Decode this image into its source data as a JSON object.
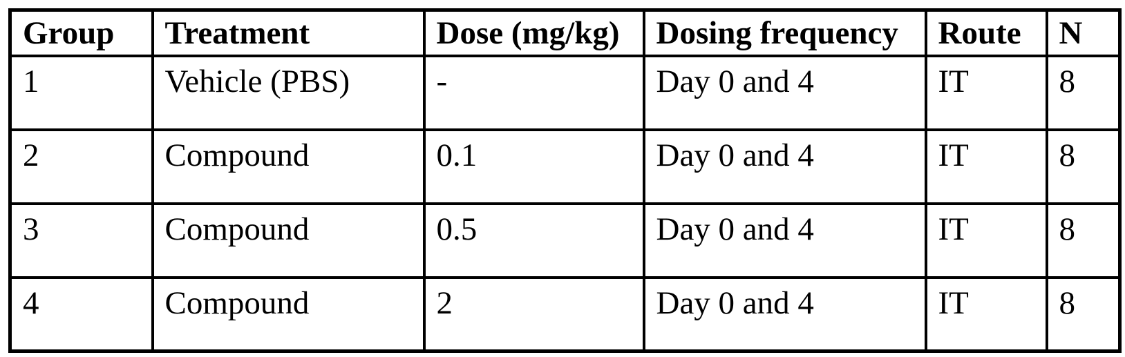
{
  "table": {
    "headers": [
      "Group",
      "Treatment",
      "Dose (mg/kg)",
      "Dosing frequency",
      "Route",
      "N"
    ],
    "rows": [
      [
        "1",
        "Vehicle (PBS)",
        "-",
        "Day 0 and 4",
        "IT",
        "8"
      ],
      [
        "2",
        "Compound",
        "0.1",
        "Day 0 and 4",
        "IT",
        "8"
      ],
      [
        "3",
        "Compound",
        "0.5",
        "Day 0 and 4",
        "IT",
        "8"
      ],
      [
        "4",
        "Compound",
        "2",
        "Day 0 and 4",
        "IT",
        "8"
      ]
    ],
    "colors": {
      "border": "#000000",
      "text": "#000000",
      "background": "#ffffff"
    }
  }
}
